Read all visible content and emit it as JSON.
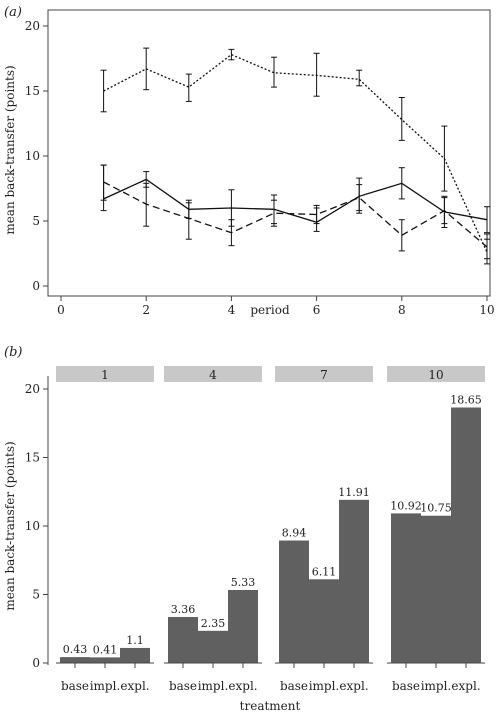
{
  "chart_data": [
    {
      "panel": "(a)",
      "type": "line",
      "title": "",
      "xlabel": "period",
      "ylabel": "mean back-transfer (points)",
      "xlim": [
        0,
        10
      ],
      "ylim": [
        0,
        20
      ],
      "xticks": [
        0,
        2,
        4,
        6,
        8,
        10
      ],
      "yticks": [
        0,
        5,
        10,
        15,
        20
      ],
      "grid": false,
      "legend": "none",
      "x": [
        1,
        2,
        3,
        4,
        5,
        6,
        7,
        8,
        9,
        10
      ],
      "series": [
        {
          "style": "dotted",
          "values": [
            15.0,
            16.7,
            15.3,
            17.8,
            16.4,
            16.2,
            15.9,
            12.8,
            9.8,
            2.6
          ],
          "err_low": [
            13.4,
            15.1,
            14.2,
            17.4,
            15.3,
            14.6,
            15.4,
            11.2,
            7.3,
            1.7
          ],
          "err_high": [
            16.6,
            18.3,
            16.3,
            18.2,
            17.6,
            17.9,
            16.6,
            14.5,
            12.3,
            3.6
          ]
        },
        {
          "style": "solid",
          "values": [
            6.7,
            8.2,
            5.9,
            6.0,
            5.9,
            4.9,
            6.9,
            7.9,
            5.7,
            5.1
          ],
          "err_low": [
            5.8,
            7.6,
            5.2,
            4.6,
            4.6,
            4.2,
            5.6,
            6.7,
            4.5,
            4.1
          ],
          "err_high": [
            9.3,
            8.8,
            6.6,
            7.4,
            7.0,
            6.0,
            8.3,
            9.1,
            6.9,
            6.1
          ]
        },
        {
          "style": "dashed",
          "values": [
            8.0,
            6.3,
            5.2,
            4.1,
            5.6,
            5.5,
            6.8,
            3.9,
            5.8,
            3.0
          ],
          "err_low": [
            6.6,
            4.6,
            3.6,
            3.1,
            4.8,
            4.8,
            5.8,
            2.7,
            4.8,
            2.1
          ],
          "err_high": [
            9.3,
            7.9,
            6.4,
            5.1,
            6.6,
            6.2,
            7.8,
            5.1,
            6.8,
            4.0
          ]
        }
      ]
    },
    {
      "panel": "(b)",
      "type": "bar",
      "title": "",
      "xlabel": "treatment",
      "ylabel": "mean back-transfer (points)",
      "ylim": [
        0,
        20
      ],
      "yticks": [
        0,
        5,
        10,
        15,
        20
      ],
      "grid": false,
      "legend": "none",
      "bar_color": "#606060",
      "strip_color": "#c8c8c8",
      "facets": [
        {
          "label": "1",
          "categories": [
            "base",
            "impl.",
            "expl."
          ],
          "values": [
            0.43,
            0.41,
            1.1
          ],
          "value_labels": [
            "0.43",
            "0.41",
            "1.1"
          ]
        },
        {
          "label": "4",
          "categories": [
            "base",
            "impl.",
            "expl."
          ],
          "values": [
            3.36,
            2.35,
            5.33
          ],
          "value_labels": [
            "3.36",
            "2.35",
            "5.33"
          ]
        },
        {
          "label": "7",
          "categories": [
            "base",
            "impl.",
            "expl."
          ],
          "values": [
            8.94,
            6.11,
            11.91
          ],
          "value_labels": [
            "8.94",
            "6.11",
            "11.91"
          ]
        },
        {
          "label": "10",
          "categories": [
            "base",
            "impl.",
            "expl."
          ],
          "values": [
            10.92,
            10.75,
            18.65
          ],
          "value_labels": [
            "10.92",
            "10.75",
            "18.65"
          ]
        }
      ]
    }
  ]
}
